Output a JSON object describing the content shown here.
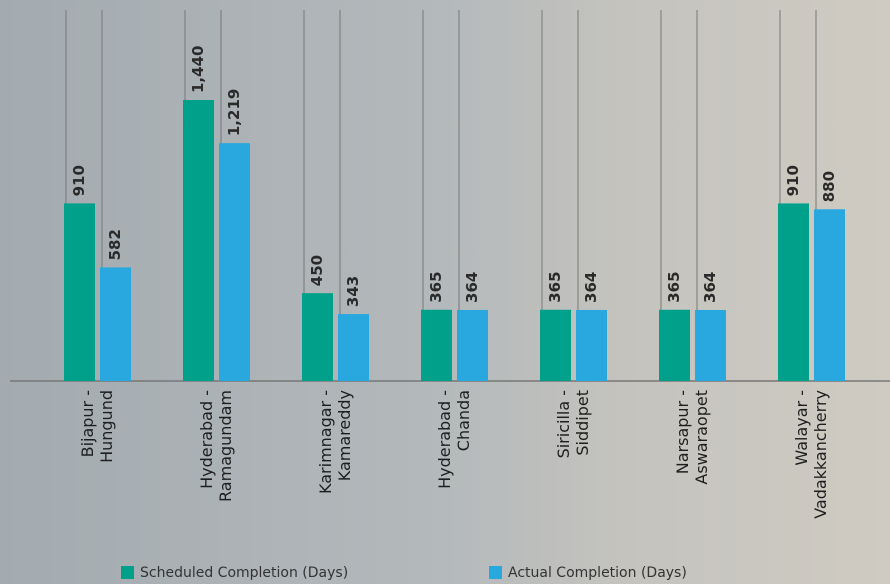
{
  "chart_data": {
    "type": "bar",
    "categories": [
      [
        "Bijapur -",
        "Hungund"
      ],
      [
        "Hyderabad -",
        "Ramagundam"
      ],
      [
        "Karimnagar -",
        "Kamareddy"
      ],
      [
        "Hyderabad -",
        "Chanda"
      ],
      [
        "Siricilla -",
        "Siddipet"
      ],
      [
        "Narsapur -",
        "Aswaraopet"
      ],
      [
        "Walayar -",
        "Vadakkancherry"
      ]
    ],
    "series": [
      {
        "name": "Scheduled Completion (Days)",
        "color": "#00a08a",
        "values": [
          910,
          1440,
          450,
          365,
          365,
          365,
          910
        ],
        "value_labels": [
          "910",
          "1,440",
          "450",
          "365",
          "365",
          "365",
          "910"
        ]
      },
      {
        "name": "Actual Completion (Days)",
        "color": "#29a8e0",
        "values": [
          582,
          1219,
          343,
          364,
          364,
          364,
          880
        ],
        "value_labels": [
          "582",
          "1,219",
          "343",
          "364",
          "364",
          "364",
          "880"
        ]
      }
    ]
  }
}
